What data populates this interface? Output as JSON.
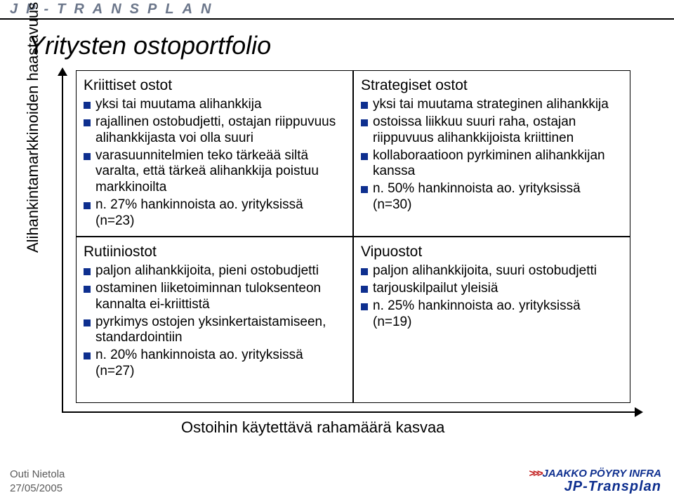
{
  "header": {
    "brand": "JP-TRANSPLAN"
  },
  "title": "Yritysten ostoportfolio",
  "y_axis_label": "Alihankintamarkkinoiden haastavuus kasvaa",
  "x_axis_label": "Ostoihin käytettävä rahamäärä kasvaa",
  "cells": {
    "top_left": {
      "heading": "Kriittiset ostot",
      "bullets": [
        "yksi tai muutama alihankkija",
        "rajallinen ostobudjetti, ostajan riippuvuus alihankkijasta voi olla suuri",
        "varasuunnitelmien teko tärkeää siltä varalta, että tärkeä alihankkija poistuu markkinoilta",
        "n. 27% hankinnoista ao. yrityksissä (n=23)"
      ]
    },
    "top_right": {
      "heading": "Strategiset ostot",
      "bullets": [
        "yksi tai muutama strateginen alihankkija",
        "ostoissa liikkuu suuri raha, ostajan riippuvuus alihankkijoista kriittinen",
        "kollaboraatioon pyrkiminen alihankkijan kanssa",
        "n. 50% hankinnoista ao. yrityksissä (n=30)"
      ]
    },
    "bottom_left": {
      "heading": "Rutiiniostot",
      "bullets": [
        "paljon alihankkijoita, pieni ostobudjetti",
        "ostaminen liiketoiminnan tuloksenteon kannalta ei-kriittistä",
        "pyrkimys ostojen yksinkertaistamiseen, standardointiin",
        "n. 20% hankinnoista ao. yrityksissä (n=27)"
      ]
    },
    "bottom_right": {
      "heading": "Vipuostot",
      "bullets": [
        "paljon alihankkijoita, suuri ostobudjetti",
        "tarjouskilpailut yleisiä",
        "n. 25% hankinnoista ao. yrityksissä (n=19)"
      ]
    }
  },
  "footer": {
    "author": "Outi Nietola",
    "date": "27/05/2005",
    "logo_top": "JAAKKO PÖYRY INFRA",
    "logo_bottom": "JP-Transplan"
  },
  "style": {
    "bullet_color": "#0e2f8f",
    "logo_blue": "#0e2f8f",
    "logo_red": "#c01818",
    "header_text_color": "#6b768a"
  }
}
